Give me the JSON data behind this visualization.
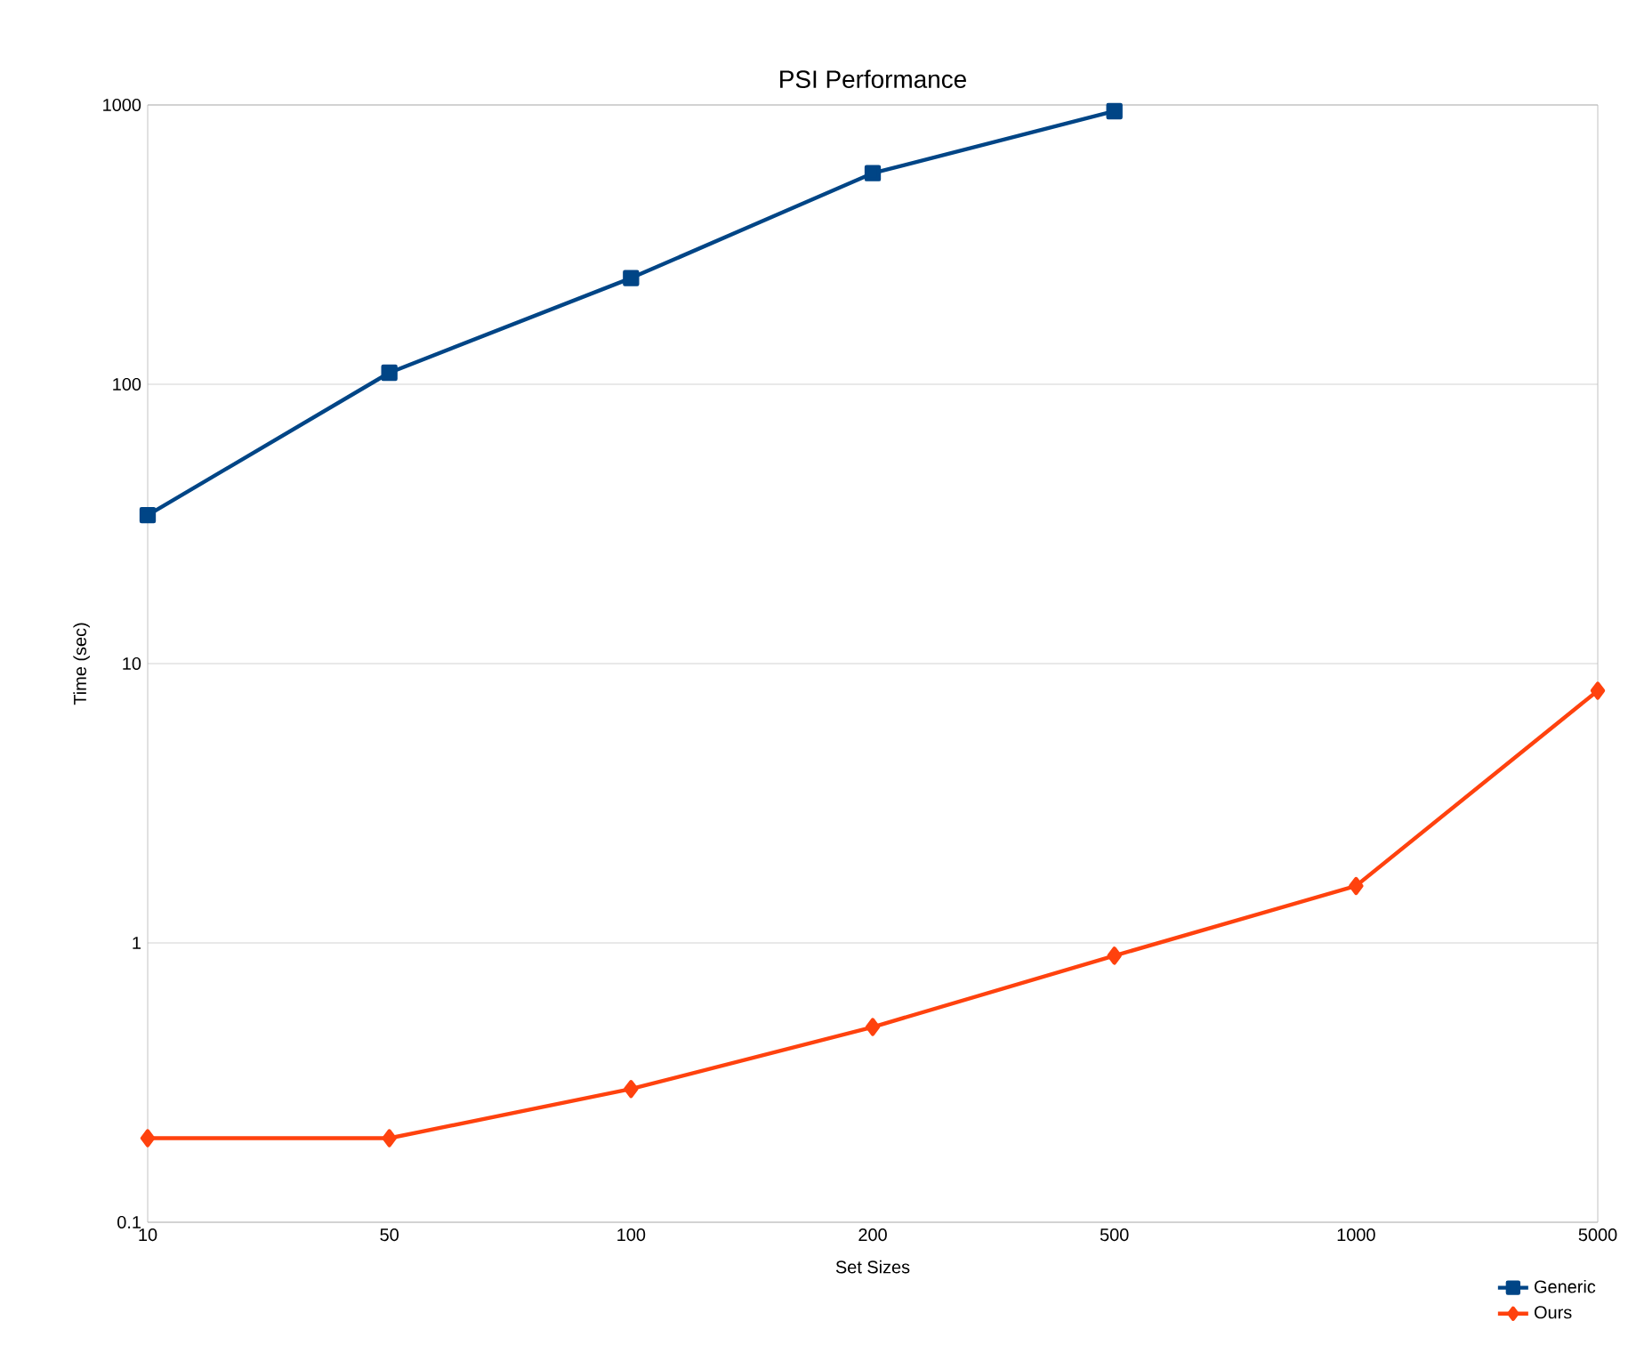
{
  "chart_data": {
    "type": "line",
    "title": "PSI Performance",
    "xlabel": "Set Sizes",
    "ylabel": "Time (sec)",
    "categories": [
      "10",
      "50",
      "100",
      "200",
      "500",
      "1000",
      "5000"
    ],
    "series": [
      {
        "name": "Generic",
        "color": "#004586",
        "marker": "square",
        "values": [
          34,
          110,
          240,
          570,
          950,
          null,
          null
        ]
      },
      {
        "name": "Ours",
        "color": "#ff420e",
        "marker": "diamond",
        "values": [
          0.2,
          0.2,
          0.3,
          0.5,
          0.9,
          1.6,
          8
        ]
      }
    ],
    "log": "y",
    "ylim": [
      0.1,
      1000
    ],
    "yticks": [
      0.1,
      1,
      10,
      100,
      1000
    ],
    "grid": "y",
    "legend": "bottom right",
    "line_style": "solid"
  }
}
